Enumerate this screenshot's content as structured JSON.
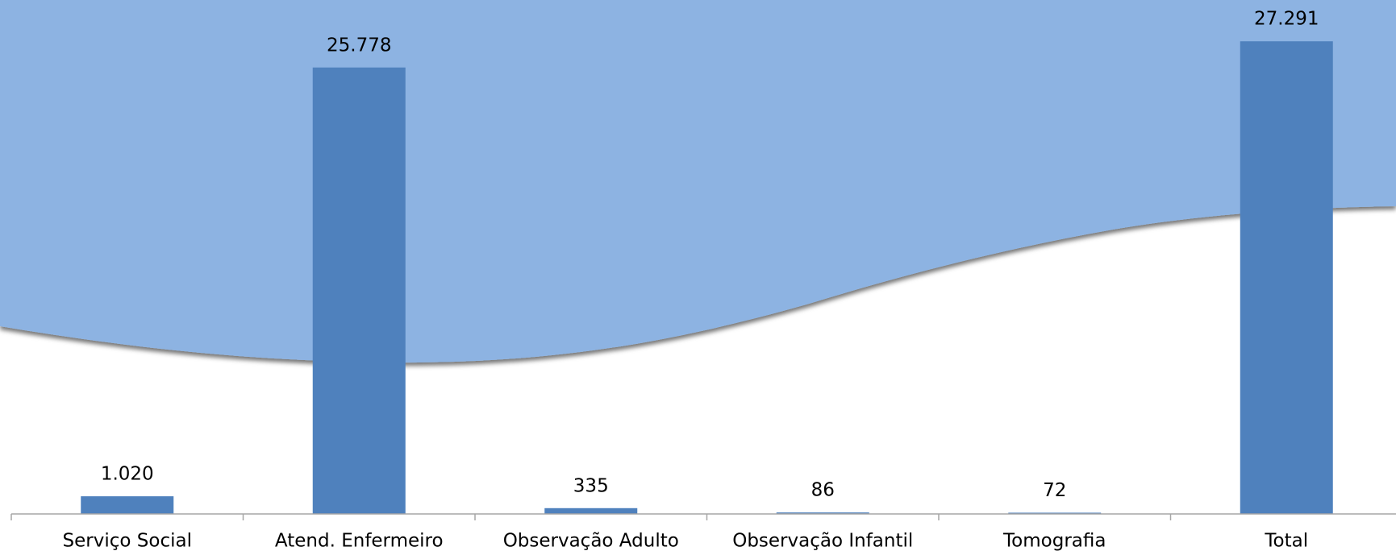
{
  "chart_data": {
    "type": "bar",
    "categories": [
      "Serviço Social",
      "Atend. Enfermeiro",
      "Observação Adulto",
      "Observação Infantil",
      "Tomografia",
      "Total"
    ],
    "values": [
      1020,
      25778,
      335,
      86,
      72,
      27291
    ],
    "value_labels": [
      "1.020",
      "25.778",
      "335",
      "86",
      "72",
      "27.291"
    ],
    "color": "#4f81bd",
    "ylim": [
      0,
      30000
    ]
  }
}
